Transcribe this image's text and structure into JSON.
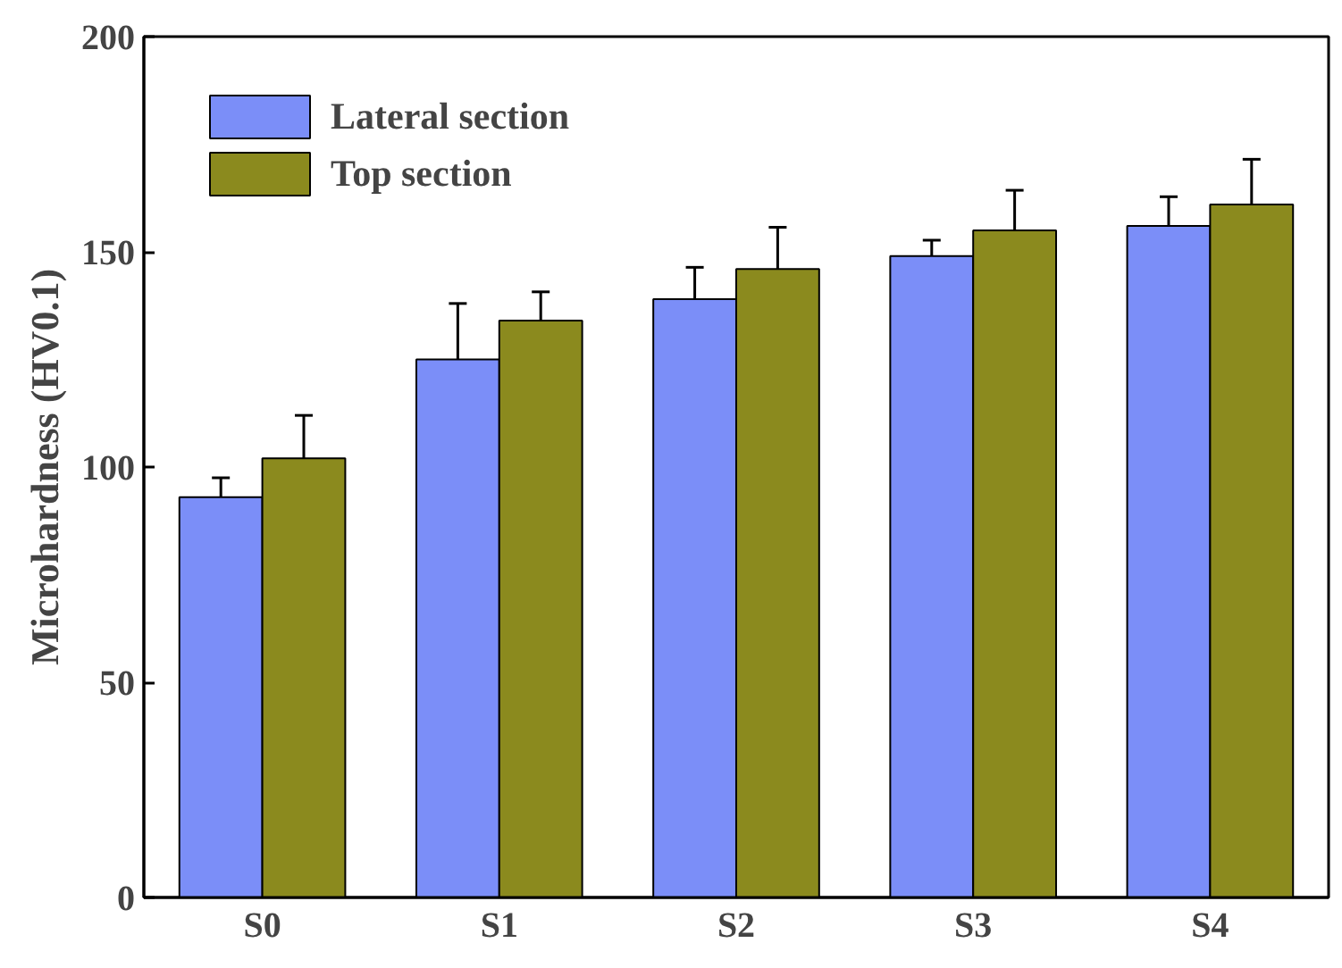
{
  "chart_data": {
    "type": "bar",
    "ylabel": "Microhardness (HV0.1)",
    "categories": [
      "S0",
      "S1",
      "S2",
      "S3",
      "S4"
    ],
    "series": [
      {
        "name": "Lateral section",
        "color": "#7b8ef8",
        "values": [
          93,
          125,
          139,
          149,
          156
        ],
        "errors": [
          4.5,
          13,
          7.4,
          3.7,
          6.8
        ]
      },
      {
        "name": "Top section",
        "color": "#8b8a1e",
        "values": [
          102,
          134,
          146,
          155,
          161
        ],
        "errors": [
          10,
          6.7,
          9.7,
          9.3,
          10.5
        ]
      }
    ],
    "ylim": [
      0,
      200
    ],
    "yticks": [
      0,
      50,
      100,
      150,
      200
    ],
    "grid": false,
    "legend": "top left"
  }
}
